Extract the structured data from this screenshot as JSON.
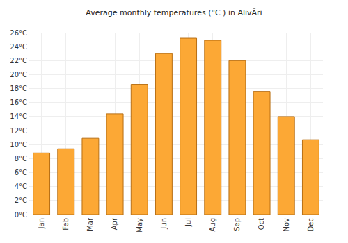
{
  "chart_data": {
    "type": "bar",
    "title": "Average monthly temperatures (°C ) in AlivÃri",
    "categories": [
      "Jan",
      "Feb",
      "Mar",
      "Apr",
      "May",
      "Jun",
      "Jul",
      "Aug",
      "Sep",
      "Oct",
      "Nov",
      "Dec"
    ],
    "values": [
      8.8,
      9.4,
      10.9,
      14.4,
      18.6,
      23.0,
      25.2,
      24.9,
      22.0,
      17.6,
      14.0,
      10.7
    ],
    "color": "#fca835",
    "ylim": [
      0,
      26
    ],
    "yticks": [
      {
        "value": 0,
        "label": "0°C"
      },
      {
        "value": 2,
        "label": "2°C"
      },
      {
        "value": 4,
        "label": "4°C"
      },
      {
        "value": 6,
        "label": "6°C"
      },
      {
        "value": 8,
        "label": "8°C"
      },
      {
        "value": 10,
        "label": "10°C"
      },
      {
        "value": 12,
        "label": "12°C"
      },
      {
        "value": 14,
        "label": "14°C"
      },
      {
        "value": 16,
        "label": "16°C"
      },
      {
        "value": 18,
        "label": "18°C"
      },
      {
        "value": 20,
        "label": "20°C"
      },
      {
        "value": 22,
        "label": "22°C"
      },
      {
        "value": 24,
        "label": "24°C"
      },
      {
        "value": 26,
        "label": "26°C"
      }
    ],
    "grid": true
  }
}
